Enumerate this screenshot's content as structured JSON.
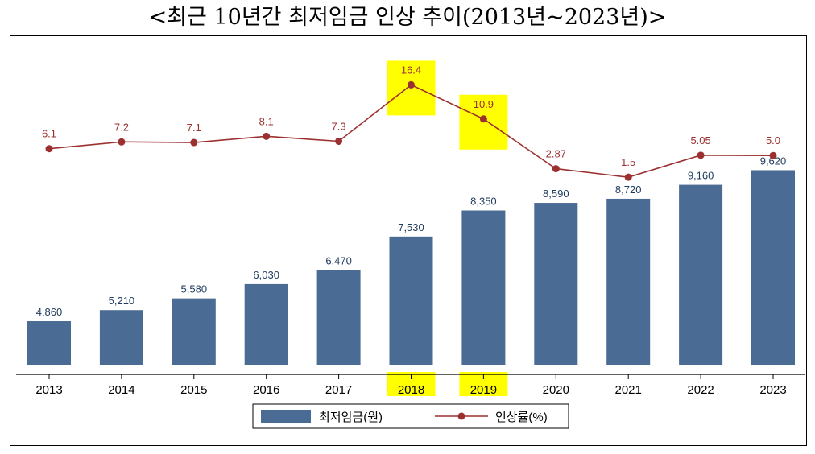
{
  "title": "<최근 10년간 최저임금 인상 추이(2013년~2023년)>",
  "colors": {
    "bar": "#4a6b93",
    "bar_label": "#1f3b5e",
    "line": "#9c3030",
    "highlight": "#ffff00",
    "axis": "#000000"
  },
  "chart_data": {
    "type": "bar+line",
    "categories": [
      "2013",
      "2014",
      "2015",
      "2016",
      "2017",
      "2018",
      "2019",
      "2020",
      "2021",
      "2022",
      "2023"
    ],
    "series": [
      {
        "name": "최저임금(원)",
        "type": "bar",
        "values": [
          4860,
          5210,
          5580,
          6030,
          6470,
          7530,
          8350,
          8590,
          8720,
          9160,
          9620
        ],
        "labels": [
          "4,860",
          "5,210",
          "5,580",
          "6,030",
          "6,470",
          "7,530",
          "8,350",
          "8,590",
          "8,720",
          "9,160",
          "9,620"
        ]
      },
      {
        "name": "인상률(%)",
        "type": "line",
        "values": [
          6.1,
          7.2,
          7.1,
          8.1,
          7.3,
          16.4,
          10.9,
          2.87,
          1.5,
          5.05,
          5.0
        ],
        "labels": [
          "6.1",
          "7.2",
          "7.1",
          "8.1",
          "7.3",
          "16.4",
          "10.9",
          "2.87",
          "1.5",
          "5.05",
          "5.0"
        ]
      }
    ],
    "highlighted_categories": [
      "2018",
      "2019"
    ],
    "legend": {
      "position": "bottom",
      "entries": [
        "최저임금(원)",
        "인상률(%)"
      ]
    }
  }
}
